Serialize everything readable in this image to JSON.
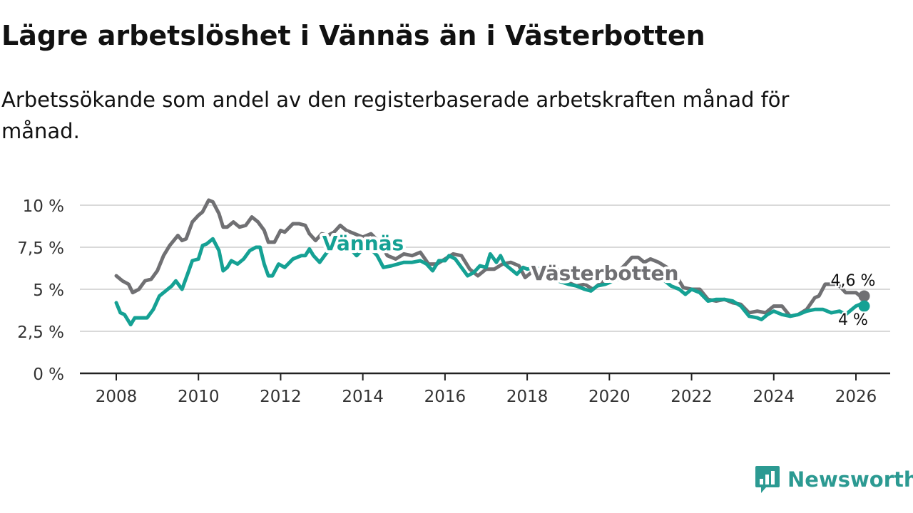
{
  "header": {
    "title": "Lägre arbetslöshet i Vännäs än i Västerbotten",
    "subtitle": "Arbetssökande som andel av den registerbaserade arbetskraften månad för månad."
  },
  "brand": {
    "name": "Newsworthy",
    "color": "#2c9a92",
    "icon": "newsworthy-logo-icon"
  },
  "chart_data": {
    "type": "line",
    "title": "Lägre arbetslöshet i Vännäs än i Västerbotten",
    "xlabel": "",
    "ylabel": "",
    "xlim": [
      2008,
      2026.2
    ],
    "ylim": [
      0,
      10
    ],
    "grid": true,
    "x_ticks": [
      2008,
      2010,
      2012,
      2014,
      2016,
      2018,
      2020,
      2022,
      2024,
      2026
    ],
    "x_tick_labels": [
      "2008",
      "2010",
      "2012",
      "2014",
      "2016",
      "2018",
      "2020",
      "2022",
      "2024",
      "2026"
    ],
    "y_ticks": [
      0,
      2.5,
      5,
      7.5,
      10
    ],
    "y_tick_labels": [
      "0 %",
      "2,5 %",
      "5 %",
      "7,5 %",
      "10 %"
    ],
    "series": [
      {
        "name": "Västerbotten",
        "color": "#707073",
        "end_label": "4,6 %",
        "points": [
          [
            2008.0,
            5.8
          ],
          [
            2008.15,
            5.5
          ],
          [
            2008.3,
            5.3
          ],
          [
            2008.4,
            4.8
          ],
          [
            2008.55,
            5.0
          ],
          [
            2008.7,
            5.5
          ],
          [
            2008.85,
            5.6
          ],
          [
            2009.0,
            6.1
          ],
          [
            2009.15,
            7.0
          ],
          [
            2009.3,
            7.6
          ],
          [
            2009.5,
            8.2
          ],
          [
            2009.6,
            7.9
          ],
          [
            2009.7,
            8.0
          ],
          [
            2009.85,
            9.0
          ],
          [
            2010.0,
            9.4
          ],
          [
            2010.1,
            9.6
          ],
          [
            2010.25,
            10.3
          ],
          [
            2010.35,
            10.2
          ],
          [
            2010.5,
            9.5
          ],
          [
            2010.6,
            8.7
          ],
          [
            2010.7,
            8.7
          ],
          [
            2010.85,
            9.0
          ],
          [
            2011.0,
            8.7
          ],
          [
            2011.15,
            8.8
          ],
          [
            2011.3,
            9.3
          ],
          [
            2011.45,
            9.0
          ],
          [
            2011.6,
            8.5
          ],
          [
            2011.7,
            7.8
          ],
          [
            2011.85,
            7.8
          ],
          [
            2012.0,
            8.5
          ],
          [
            2012.1,
            8.4
          ],
          [
            2012.3,
            8.9
          ],
          [
            2012.45,
            8.9
          ],
          [
            2012.6,
            8.8
          ],
          [
            2012.7,
            8.3
          ],
          [
            2012.85,
            7.9
          ],
          [
            2013.0,
            8.3
          ],
          [
            2013.15,
            8.2
          ],
          [
            2013.3,
            8.4
          ],
          [
            2013.45,
            8.8
          ],
          [
            2013.6,
            8.5
          ],
          [
            2013.8,
            8.3
          ],
          [
            2014.0,
            8.1
          ],
          [
            2014.2,
            8.3
          ],
          [
            2014.4,
            7.8
          ],
          [
            2014.6,
            7.0
          ],
          [
            2014.8,
            6.8
          ],
          [
            2015.0,
            7.1
          ],
          [
            2015.2,
            7.0
          ],
          [
            2015.4,
            7.2
          ],
          [
            2015.6,
            6.5
          ],
          [
            2015.8,
            6.5
          ],
          [
            2016.0,
            6.8
          ],
          [
            2016.2,
            7.1
          ],
          [
            2016.4,
            7.0
          ],
          [
            2016.6,
            6.2
          ],
          [
            2016.8,
            5.8
          ],
          [
            2017.0,
            6.2
          ],
          [
            2017.2,
            6.2
          ],
          [
            2017.4,
            6.5
          ],
          [
            2017.6,
            6.6
          ],
          [
            2017.8,
            6.4
          ],
          [
            2017.95,
            5.7
          ],
          [
            2018.1,
            6.0
          ],
          [
            2018.3,
            6.0
          ],
          [
            2018.5,
            6.2
          ],
          [
            2018.7,
            6.3
          ],
          [
            2018.85,
            5.7
          ],
          [
            2019.0,
            5.4
          ],
          [
            2019.2,
            5.2
          ],
          [
            2019.4,
            5.3
          ],
          [
            2019.6,
            5.0
          ],
          [
            2019.8,
            5.4
          ],
          [
            2020.0,
            5.6
          ],
          [
            2020.2,
            6.0
          ],
          [
            2020.4,
            6.5
          ],
          [
            2020.55,
            6.9
          ],
          [
            2020.7,
            6.9
          ],
          [
            2020.85,
            6.6
          ],
          [
            2021.0,
            6.8
          ],
          [
            2021.2,
            6.6
          ],
          [
            2021.4,
            6.3
          ],
          [
            2021.6,
            5.9
          ],
          [
            2021.8,
            5.1
          ],
          [
            2022.0,
            5.0
          ],
          [
            2022.2,
            5.0
          ],
          [
            2022.4,
            4.4
          ],
          [
            2022.6,
            4.3
          ],
          [
            2022.8,
            4.4
          ],
          [
            2023.0,
            4.2
          ],
          [
            2023.2,
            4.1
          ],
          [
            2023.4,
            3.6
          ],
          [
            2023.6,
            3.7
          ],
          [
            2023.8,
            3.6
          ],
          [
            2024.0,
            4.0
          ],
          [
            2024.2,
            4.0
          ],
          [
            2024.4,
            3.4
          ],
          [
            2024.6,
            3.5
          ],
          [
            2024.8,
            3.8
          ],
          [
            2025.0,
            4.5
          ],
          [
            2025.1,
            4.6
          ],
          [
            2025.25,
            5.3
          ],
          [
            2025.4,
            5.3
          ],
          [
            2025.5,
            5.3
          ],
          [
            2025.6,
            5.2
          ],
          [
            2025.75,
            4.8
          ],
          [
            2026.0,
            4.8
          ],
          [
            2026.1,
            4.6
          ],
          [
            2026.2,
            4.6
          ]
        ]
      },
      {
        "name": "Vännäs",
        "color": "#15a194",
        "end_label": "4 %",
        "points": [
          [
            2008.0,
            4.2
          ],
          [
            2008.1,
            3.6
          ],
          [
            2008.2,
            3.5
          ],
          [
            2008.35,
            2.9
          ],
          [
            2008.45,
            3.3
          ],
          [
            2008.6,
            3.3
          ],
          [
            2008.75,
            3.3
          ],
          [
            2008.9,
            3.8
          ],
          [
            2009.05,
            4.6
          ],
          [
            2009.2,
            4.9
          ],
          [
            2009.35,
            5.2
          ],
          [
            2009.45,
            5.5
          ],
          [
            2009.6,
            5.0
          ],
          [
            2009.75,
            6.0
          ],
          [
            2009.85,
            6.7
          ],
          [
            2010.0,
            6.8
          ],
          [
            2010.1,
            7.6
          ],
          [
            2010.2,
            7.7
          ],
          [
            2010.35,
            8.0
          ],
          [
            2010.5,
            7.3
          ],
          [
            2010.6,
            6.1
          ],
          [
            2010.7,
            6.3
          ],
          [
            2010.8,
            6.7
          ],
          [
            2010.95,
            6.5
          ],
          [
            2011.1,
            6.8
          ],
          [
            2011.25,
            7.3
          ],
          [
            2011.4,
            7.5
          ],
          [
            2011.5,
            7.5
          ],
          [
            2011.6,
            6.5
          ],
          [
            2011.7,
            5.8
          ],
          [
            2011.8,
            5.8
          ],
          [
            2011.95,
            6.5
          ],
          [
            2012.1,
            6.3
          ],
          [
            2012.3,
            6.8
          ],
          [
            2012.5,
            7.0
          ],
          [
            2012.6,
            7.0
          ],
          [
            2012.7,
            7.4
          ],
          [
            2012.8,
            7.0
          ],
          [
            2012.95,
            6.6
          ],
          [
            2013.1,
            7.1
          ],
          [
            2013.3,
            7.7
          ],
          [
            2013.45,
            7.8
          ],
          [
            2013.55,
            8.0
          ],
          [
            2013.7,
            7.4
          ],
          [
            2013.85,
            7.0
          ],
          [
            2014.0,
            7.4
          ],
          [
            2014.2,
            7.4
          ],
          [
            2014.35,
            7.0
          ],
          [
            2014.5,
            6.3
          ],
          [
            2014.7,
            6.4
          ],
          [
            2014.85,
            6.5
          ],
          [
            2015.0,
            6.6
          ],
          [
            2015.2,
            6.6
          ],
          [
            2015.4,
            6.7
          ],
          [
            2015.55,
            6.5
          ],
          [
            2015.7,
            6.1
          ],
          [
            2015.85,
            6.7
          ],
          [
            2016.0,
            6.7
          ],
          [
            2016.1,
            7.0
          ],
          [
            2016.25,
            6.8
          ],
          [
            2016.4,
            6.3
          ],
          [
            2016.55,
            5.8
          ],
          [
            2016.7,
            6.0
          ],
          [
            2016.85,
            6.4
          ],
          [
            2017.0,
            6.3
          ],
          [
            2017.1,
            7.1
          ],
          [
            2017.25,
            6.6
          ],
          [
            2017.35,
            7.0
          ],
          [
            2017.45,
            6.5
          ],
          [
            2017.6,
            6.2
          ],
          [
            2017.75,
            5.9
          ],
          [
            2017.9,
            6.3
          ],
          [
            2018.0,
            6.2
          ],
          [
            2018.2,
            6.3
          ],
          [
            2018.4,
            6.1
          ],
          [
            2018.6,
            5.9
          ],
          [
            2018.75,
            5.5
          ],
          [
            2019.0,
            5.3
          ],
          [
            2019.2,
            5.2
          ],
          [
            2019.4,
            5.0
          ],
          [
            2019.55,
            4.9
          ],
          [
            2019.7,
            5.2
          ],
          [
            2019.9,
            5.3
          ],
          [
            2020.1,
            5.5
          ],
          [
            2020.3,
            5.7
          ],
          [
            2020.5,
            6.0
          ],
          [
            2020.7,
            6.3
          ],
          [
            2020.9,
            6.0
          ],
          [
            2021.1,
            6.1
          ],
          [
            2021.3,
            5.6
          ],
          [
            2021.5,
            5.2
          ],
          [
            2021.7,
            5.0
          ],
          [
            2021.85,
            4.7
          ],
          [
            2022.0,
            5.0
          ],
          [
            2022.2,
            4.8
          ],
          [
            2022.4,
            4.3
          ],
          [
            2022.6,
            4.4
          ],
          [
            2022.8,
            4.4
          ],
          [
            2023.0,
            4.3
          ],
          [
            2023.2,
            4.0
          ],
          [
            2023.4,
            3.4
          ],
          [
            2023.6,
            3.3
          ],
          [
            2023.7,
            3.2
          ],
          [
            2023.85,
            3.5
          ],
          [
            2024.0,
            3.7
          ],
          [
            2024.2,
            3.5
          ],
          [
            2024.4,
            3.4
          ],
          [
            2024.6,
            3.5
          ],
          [
            2024.8,
            3.7
          ],
          [
            2025.0,
            3.8
          ],
          [
            2025.2,
            3.8
          ],
          [
            2025.4,
            3.6
          ],
          [
            2025.6,
            3.7
          ],
          [
            2025.75,
            3.5
          ],
          [
            2025.9,
            3.8
          ],
          [
            2026.0,
            4.0
          ],
          [
            2026.1,
            4.1
          ],
          [
            2026.2,
            4.0
          ]
        ]
      }
    ]
  }
}
